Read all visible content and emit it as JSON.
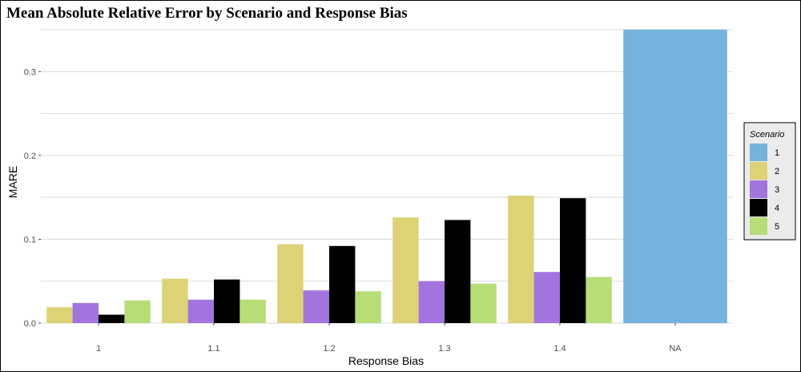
{
  "chart_data": {
    "type": "bar",
    "title": "Mean Absolute Relative Error by Scenario and Response Bias",
    "xlabel": "Response Bias",
    "ylabel": "MARE",
    "categories": [
      "1",
      "1.1",
      "1.2",
      "1.3",
      "1.4",
      "NA"
    ],
    "ylim": [
      0,
      0.35
    ],
    "yticks": [
      "0.0",
      "0.1",
      "0.2",
      "0.3"
    ],
    "grid": true,
    "legend": {
      "title": "Scenario",
      "position": "right"
    },
    "series": [
      {
        "name": "1",
        "color": "#75b3dd",
        "values": [
          null,
          null,
          null,
          null,
          null,
          0.35
        ]
      },
      {
        "name": "2",
        "color": "#ddd276",
        "values": [
          0.019,
          0.053,
          0.094,
          0.126,
          0.152,
          null
        ]
      },
      {
        "name": "3",
        "color": "#a274dd",
        "values": [
          0.024,
          0.028,
          0.039,
          0.05,
          0.061,
          null
        ]
      },
      {
        "name": "4",
        "color": "#000000",
        "values": [
          0.01,
          0.052,
          0.092,
          0.123,
          0.149,
          null
        ]
      },
      {
        "name": "5",
        "color": "#b7dd76",
        "values": [
          0.027,
          0.028,
          0.038,
          0.047,
          0.055,
          null
        ]
      }
    ]
  }
}
